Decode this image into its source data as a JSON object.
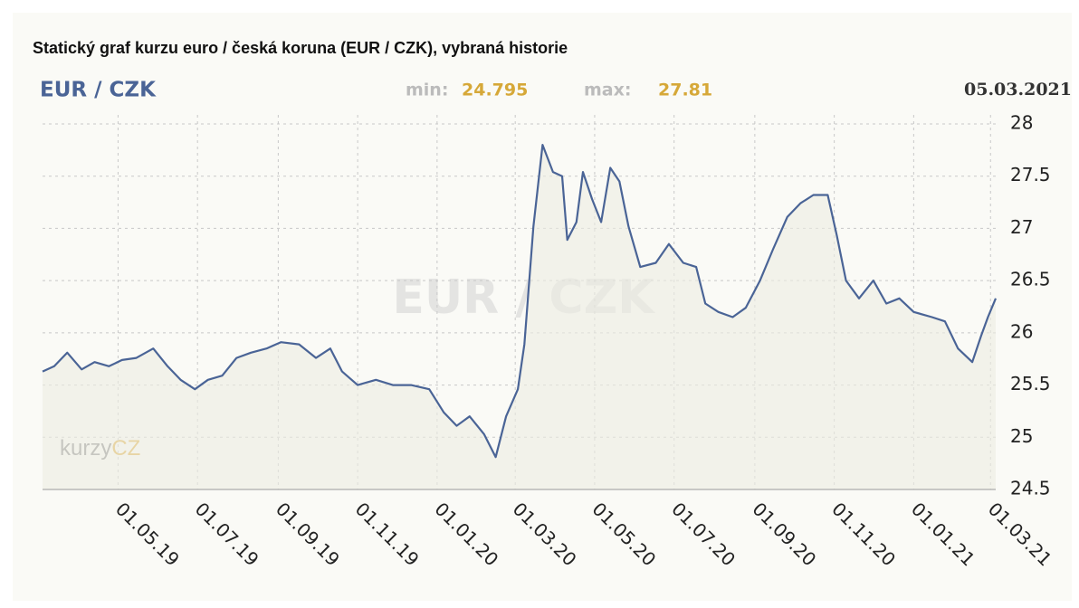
{
  "chart_data": {
    "type": "line",
    "title": "Statický graf kurzu euro / česká koruna (EUR / CZK), vybraná historie",
    "pair": "EUR / CZK",
    "min_label": "min:",
    "min": 24.795,
    "max_label": "max:",
    "max": 27.81,
    "date": "05.03.2021",
    "watermark": "EUR / CZK",
    "logo": [
      "kurzy",
      "CZ"
    ],
    "x": [
      "04.03.19",
      "13.03.19",
      "23.03.19",
      "03.04.19",
      "13.04.19",
      "24.04.19",
      "04.05.19",
      "15.05.19",
      "28.05.19",
      "08.06.19",
      "18.06.19",
      "29.06.19",
      "09.07.19",
      "20.07.19",
      "31.07.19",
      "11.08.19",
      "23.08.19",
      "03.09.19",
      "17.09.19",
      "30.09.19",
      "11.10.19",
      "20.10.19",
      "01.11.19",
      "15.11.19",
      "28.11.19",
      "12.12.19",
      "26.12.19",
      "06.01.20",
      "16.01.20",
      "26.01.20",
      "06.02.20",
      "15.02.20",
      "23.02.20",
      "03.03.20",
      "08.03.20",
      "15.03.20",
      "22.03.20",
      "30.03.20",
      "06.04.20",
      "10.04.20",
      "17.04.20",
      "22.04.20",
      "29.04.20",
      "06.05.20",
      "13.05.20",
      "20.05.20",
      "27.05.20",
      "05.06.20",
      "17.06.20",
      "27.06.20",
      "08.07.20",
      "18.07.20",
      "25.07.20",
      "04.08.20",
      "15.08.20",
      "25.08.20",
      "05.09.20",
      "15.09.20",
      "26.09.20",
      "06.10.20",
      "16.10.20",
      "27.10.20",
      "03.11.20",
      "10.11.20",
      "20.11.20",
      "01.12.20",
      "11.12.20",
      "21.12.20",
      "01.01.21",
      "15.01.21",
      "25.01.21",
      "04.02.21",
      "15.02.21",
      "22.02.21",
      "27.02.21",
      "05.03.21"
    ],
    "series": [
      {
        "name": "EUR / CZK",
        "color": "#4a6496",
        "values": [
          25.63,
          25.68,
          25.81,
          25.65,
          25.72,
          25.68,
          25.74,
          25.76,
          25.85,
          25.68,
          25.55,
          25.46,
          25.55,
          25.59,
          25.76,
          25.81,
          25.85,
          25.91,
          25.89,
          25.76,
          25.85,
          25.63,
          25.5,
          25.55,
          25.5,
          25.5,
          25.46,
          25.24,
          25.11,
          25.2,
          25.03,
          24.81,
          25.2,
          25.46,
          25.89,
          27.02,
          27.8,
          27.54,
          27.5,
          26.89,
          27.06,
          27.54,
          27.28,
          27.06,
          27.58,
          27.45,
          27.02,
          26.63,
          26.67,
          26.85,
          26.67,
          26.63,
          26.28,
          26.2,
          26.15,
          26.24,
          26.5,
          26.8,
          27.11,
          27.24,
          27.32,
          27.32,
          26.93,
          26.5,
          26.33,
          26.5,
          26.28,
          26.33,
          26.2,
          26.15,
          26.11,
          25.85,
          25.72,
          25.98,
          26.15,
          26.33
        ]
      }
    ],
    "xlim": [
      "04.03.19",
      "05.03.21"
    ],
    "xticks": [
      "01.05.19",
      "01.07.19",
      "01.09.19",
      "01.11.19",
      "01.01.20",
      "01.03.20",
      "01.05.20",
      "01.07.20",
      "01.09.20",
      "01.11.20",
      "01.01.21",
      "01.03.21"
    ],
    "ylim": [
      24.5,
      28
    ],
    "yticks": [
      24.5,
      25,
      25.5,
      26,
      26.5,
      27,
      27.5,
      28
    ],
    "grid": true
  }
}
